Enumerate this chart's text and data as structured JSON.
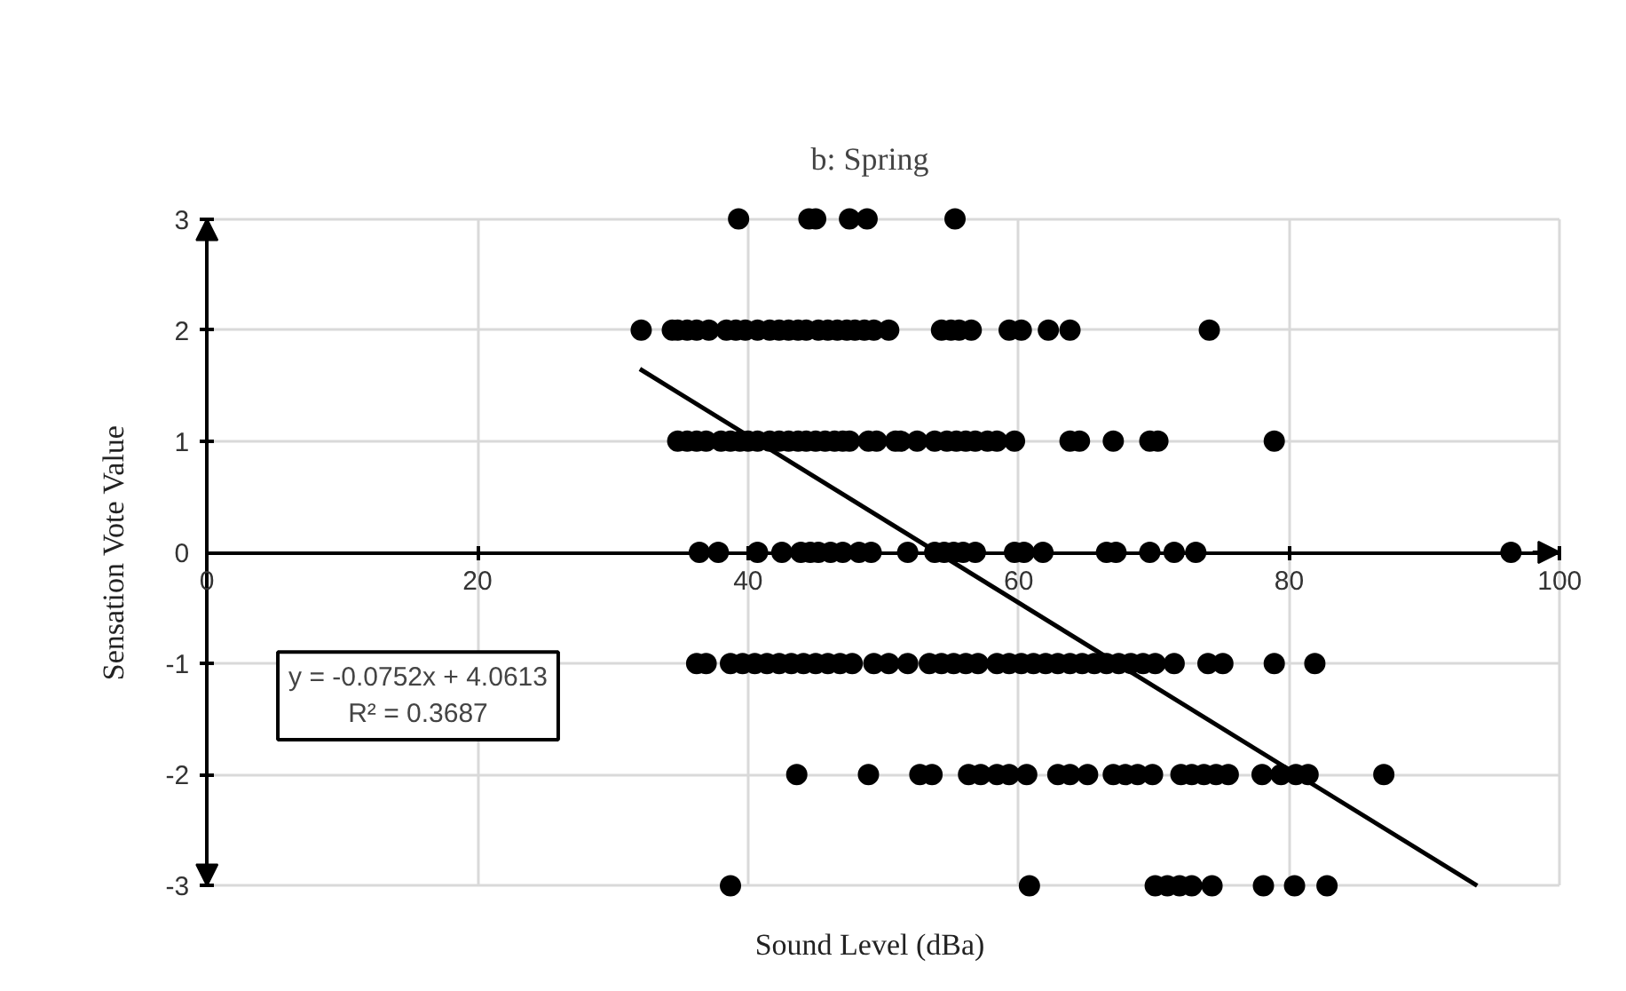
{
  "chart_data": {
    "type": "scatter",
    "title": "b: Spring",
    "xlabel": "Sound Level (dBa)",
    "ylabel": "Sensation Vote Value",
    "xlim": [
      0,
      100
    ],
    "ylim": [
      -3,
      3
    ],
    "xticks": [
      0,
      20,
      40,
      60,
      80,
      100
    ],
    "yticks": [
      -3,
      -2,
      -1,
      0,
      1,
      2,
      3
    ],
    "grid": true,
    "marker": "circle",
    "annotations": [
      "y = -0.0752x + 4.0613",
      "R² = 0.3687"
    ],
    "series": [
      {
        "color": "#000000",
        "x": [
          39.3,
          44.5,
          45,
          47.5,
          48.8,
          55.3,
          32.1,
          34.4,
          34.8,
          35.5,
          36.2,
          37.1,
          38.4,
          39.1,
          39.8,
          40.7,
          41.6,
          42.3,
          43,
          43.7,
          44.3,
          45.2,
          45.9,
          46.6,
          47.3,
          47.9,
          48.6,
          49.3,
          50.4,
          54.3,
          55,
          55.6,
          56.5,
          59.3,
          60.2,
          62.2,
          63.8,
          74.1,
          34.8,
          35.5,
          36.2,
          36.9,
          38,
          38.7,
          39.4,
          40,
          40.7,
          41.6,
          42.3,
          43,
          43.7,
          44.3,
          45,
          45.7,
          46.4,
          47,
          47.5,
          48.9,
          49.5,
          50.9,
          51.3,
          52.5,
          53.8,
          54.7,
          55.4,
          56.1,
          56.8,
          57.7,
          58.4,
          59.7,
          63.8,
          64.5,
          67,
          69.7,
          70.3,
          78.9,
          36.4,
          37.8,
          40.7,
          42.5,
          43.9,
          44.6,
          45.2,
          46.1,
          47,
          48.2,
          49.1,
          51.8,
          53.8,
          54.5,
          55.2,
          55.9,
          56.8,
          59.7,
          60.4,
          61.8,
          66.5,
          67.2,
          69.7,
          71.5,
          73.1,
          96.4,
          36.2,
          36.9,
          38.7,
          39.6,
          40.5,
          41.4,
          42.3,
          43.2,
          44.1,
          45,
          45.9,
          46.8,
          47.7,
          49.3,
          50.4,
          51.8,
          53.4,
          54.3,
          55.2,
          56.1,
          57,
          58.4,
          59.3,
          60.2,
          61.1,
          62,
          62.9,
          63.8,
          64.7,
          65.6,
          66.5,
          67.4,
          68.3,
          69.2,
          70.1,
          71.5,
          74,
          75.1,
          78.9,
          81.9,
          43.6,
          48.9,
          52.7,
          53.6,
          56.3,
          57.2,
          58.4,
          59.3,
          60.6,
          62.9,
          63.8,
          65.1,
          67,
          67.9,
          68.8,
          69.9,
          72,
          72.8,
          73.7,
          74.6,
          75.5,
          78,
          79.4,
          80.5,
          81.4,
          87,
          38.7,
          60.8,
          70.1,
          71,
          71.9,
          72.8,
          74.3,
          78.1,
          80.4,
          82.8
        ],
        "values": [
          3,
          3,
          3,
          3,
          3,
          3,
          2,
          2,
          2,
          2,
          2,
          2,
          2,
          2,
          2,
          2,
          2,
          2,
          2,
          2,
          2,
          2,
          2,
          2,
          2,
          2,
          2,
          2,
          2,
          2,
          2,
          2,
          2,
          2,
          2,
          2,
          2,
          2,
          1,
          1,
          1,
          1,
          1,
          1,
          1,
          1,
          1,
          1,
          1,
          1,
          1,
          1,
          1,
          1,
          1,
          1,
          1,
          1,
          1,
          1,
          1,
          1,
          1,
          1,
          1,
          1,
          1,
          1,
          1,
          1,
          1,
          1,
          1,
          1,
          1,
          1,
          0,
          0,
          0,
          0,
          0,
          0,
          0,
          0,
          0,
          0,
          0,
          0,
          0,
          0,
          0,
          0,
          0,
          0,
          0,
          0,
          0,
          0,
          0,
          0,
          0,
          0,
          -1,
          -1,
          -1,
          -1,
          -1,
          -1,
          -1,
          -1,
          -1,
          -1,
          -1,
          -1,
          -1,
          -1,
          -1,
          -1,
          -1,
          -1,
          -1,
          -1,
          -1,
          -1,
          -1,
          -1,
          -1,
          -1,
          -1,
          -1,
          -1,
          -1,
          -1,
          -1,
          -1,
          -1,
          -1,
          -1,
          -1,
          -1,
          -1,
          -1,
          -2,
          -2,
          -2,
          -2,
          -2,
          -2,
          -2,
          -2,
          -2,
          -2,
          -2,
          -2,
          -2,
          -2,
          -2,
          -2,
          -2,
          -2,
          -2,
          -2,
          -2,
          -2,
          -2,
          -2,
          -2,
          -2,
          -3,
          -3,
          -3,
          -3,
          -3,
          -3,
          -3,
          -3,
          -3,
          -3
        ]
      },
      {
        "type": "line",
        "marker": "none",
        "color": "#000000",
        "x": [
          32,
          93.9
        ],
        "values": [
          1.65,
          -3.0
        ]
      }
    ]
  }
}
